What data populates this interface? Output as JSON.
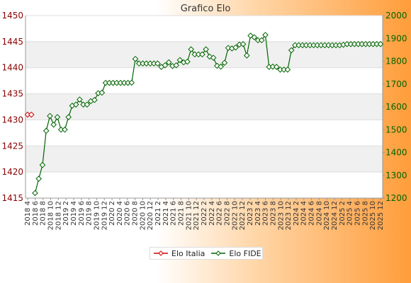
{
  "chart_data": {
    "type": "line",
    "title": "Grafico Elo",
    "left_axis": {
      "range": [
        1415,
        1450
      ],
      "ticks": [
        1415,
        1420,
        1425,
        1430,
        1435,
        1440,
        1445,
        1450
      ]
    },
    "right_axis": {
      "range": [
        1200,
        2000
      ],
      "ticks": [
        1200,
        1300,
        1400,
        1500,
        1600,
        1700,
        1800,
        1900,
        2000
      ]
    },
    "x_labels": [
      "2018 4",
      "2018 6",
      "2018 8",
      "2018 10",
      "2018 12",
      "2019 2",
      "2019 4",
      "2019 6",
      "2019 8",
      "2019 10",
      "2019 12",
      "2020 2",
      "2020 4",
      "2020 6",
      "2020 8",
      "2020 10",
      "2020 12",
      "2021 2",
      "2021 4",
      "2021 6",
      "2021 8",
      "2021 10",
      "2021 12",
      "2022 2",
      "2022 4",
      "2022 6",
      "2022 8",
      "2022 10",
      "2022 12",
      "2023 2",
      "2023 4",
      "2023 6",
      "2023 8",
      "2023 10",
      "2023 12",
      "2024 2",
      "2024 4",
      "2024 6",
      "2024 8",
      "2024 10",
      "2024 12",
      "2025 2",
      "2025 4",
      "2025 6",
      "2025 8",
      "2025 10",
      "2025 12"
    ],
    "grid": true,
    "legend_position": "bottom",
    "series": [
      {
        "name": "Elo Italia",
        "axis": "left",
        "color": "#cc0000",
        "values": [
          1431,
          1431
        ]
      },
      {
        "name": "Elo FIDE",
        "axis": "right",
        "color": "#006400",
        "x_start": 2,
        "values": [
          1222,
          1285,
          1345,
          1495,
          1560,
          1522,
          1555,
          1500,
          1500,
          1555,
          1605,
          1610,
          1632,
          1610,
          1610,
          1625,
          1630,
          1660,
          1662,
          1705,
          1705,
          1705,
          1705,
          1705,
          1705,
          1705,
          1706,
          1810,
          1790,
          1790,
          1790,
          1790,
          1790,
          1790,
          1775,
          1782,
          1795,
          1779,
          1782,
          1805,
          1795,
          1798,
          1852,
          1830,
          1830,
          1830,
          1852,
          1820,
          1815,
          1780,
          1776,
          1793,
          1858,
          1856,
          1860,
          1873,
          1875,
          1825,
          1912,
          1905,
          1892,
          1892,
          1915,
          1775,
          1776,
          1775,
          1763,
          1763,
          1763,
          1848,
          1870,
          1870,
          1870,
          1870,
          1870,
          1870,
          1870,
          1870,
          1870,
          1870,
          1870,
          1870,
          1870,
          1872,
          1875,
          1875,
          1875,
          1875,
          1875,
          1875,
          1875,
          1875,
          1875,
          1875
        ]
      }
    ]
  }
}
